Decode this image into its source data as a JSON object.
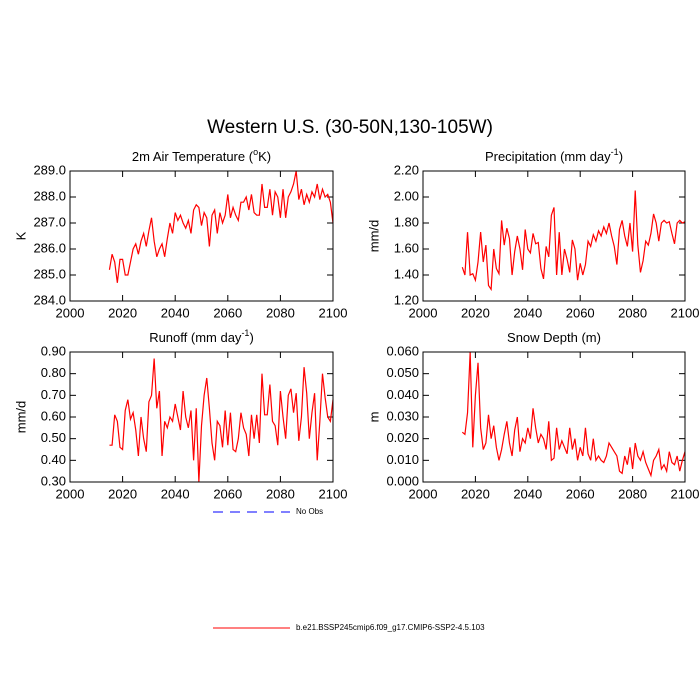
{
  "title": "Western U.S. (30-50N,130-105W)",
  "legend": [
    {
      "name": "No Obs",
      "color": "#0000ff",
      "dashed": true
    },
    {
      "name": "b.e21.BSSP245cmip6.f09_g17.CMIP6-SSP2-4.5.103",
      "color": "#ff0000",
      "dashed": false
    }
  ],
  "chart_data": [
    {
      "type": "line",
      "title": {
        "text": "2m Air Temperature (",
        "sup": "o",
        "end": "K)"
      },
      "y_label": "K",
      "xlim": [
        2000,
        2100
      ],
      "xticks": [
        2000,
        2020,
        2040,
        2060,
        2080,
        2100
      ],
      "ylim": [
        284,
        289
      ],
      "yticks": [
        {
          "value": 284,
          "label": "284.0"
        },
        {
          "value": 285,
          "label": "285.0"
        },
        {
          "value": 286,
          "label": "286.0"
        },
        {
          "value": 287,
          "label": "287.0"
        },
        {
          "value": 288,
          "label": "288.0"
        },
        {
          "value": 289,
          "label": "289.0"
        }
      ],
      "x": [
        2015,
        2016,
        2017,
        2018,
        2019,
        2020,
        2021,
        2022,
        2023,
        2024,
        2025,
        2026,
        2027,
        2028,
        2029,
        2030,
        2031,
        2032,
        2033,
        2034,
        2035,
        2036,
        2037,
        2038,
        2039,
        2040,
        2041,
        2042,
        2043,
        2044,
        2045,
        2046,
        2047,
        2048,
        2049,
        2050,
        2051,
        2052,
        2053,
        2054,
        2055,
        2056,
        2057,
        2058,
        2059,
        2060,
        2061,
        2062,
        2063,
        2064,
        2065,
        2066,
        2067,
        2068,
        2069,
        2070,
        2071,
        2072,
        2073,
        2074,
        2075,
        2076,
        2077,
        2078,
        2079,
        2080,
        2081,
        2082,
        2083,
        2084,
        2085,
        2086,
        2087,
        2088,
        2089,
        2090,
        2091,
        2092,
        2093,
        2094,
        2095,
        2096,
        2097,
        2098,
        2099,
        2100
      ],
      "series": [
        {
          "color": "#ff0000",
          "values": [
            285.2,
            285.8,
            285.5,
            284.7,
            285.6,
            285.6,
            285.0,
            285.0,
            285.5,
            286.0,
            286.2,
            285.8,
            286.3,
            286.6,
            286.1,
            286.7,
            287.2,
            286.3,
            285.7,
            286.0,
            286.2,
            285.7,
            286.4,
            287.0,
            286.6,
            287.4,
            287.1,
            287.3,
            287.0,
            286.8,
            287.1,
            286.6,
            287.5,
            287.7,
            287.6,
            286.9,
            287.4,
            287.2,
            286.1,
            287.3,
            287.5,
            286.6,
            287.4,
            287.0,
            287.3,
            288.1,
            287.2,
            287.6,
            287.3,
            287.1,
            287.8,
            287.8,
            288.0,
            287.5,
            288.1,
            287.4,
            287.3,
            287.3,
            288.5,
            287.6,
            287.6,
            288.3,
            287.3,
            288.2,
            288.0,
            287.2,
            288.3,
            287.2,
            288.0,
            288.2,
            288.5,
            289.0,
            287.9,
            288.3,
            287.7,
            288.1,
            287.8,
            288.2,
            288.0,
            288.5,
            287.9,
            288.3,
            288.0,
            288.1,
            287.8,
            287.0
          ]
        }
      ]
    },
    {
      "type": "line",
      "title": {
        "text": "Precipitation (mm day",
        "sup": "-1",
        "end": ")"
      },
      "y_label": "mm/d",
      "xlim": [
        2000,
        2100
      ],
      "xticks": [
        2000,
        2020,
        2040,
        2060,
        2080,
        2100
      ],
      "ylim": [
        1.2,
        2.2
      ],
      "yticks": [
        {
          "value": 1.2,
          "label": "1.20"
        },
        {
          "value": 1.4,
          "label": "1.40"
        },
        {
          "value": 1.6,
          "label": "1.60"
        },
        {
          "value": 1.8,
          "label": "1.80"
        },
        {
          "value": 2.0,
          "label": "2.00"
        },
        {
          "value": 2.2,
          "label": "2.20"
        }
      ],
      "x": [
        2015,
        2016,
        2017,
        2018,
        2019,
        2020,
        2021,
        2022,
        2023,
        2024,
        2025,
        2026,
        2027,
        2028,
        2029,
        2030,
        2031,
        2032,
        2033,
        2034,
        2035,
        2036,
        2037,
        2038,
        2039,
        2040,
        2041,
        2042,
        2043,
        2044,
        2045,
        2046,
        2047,
        2048,
        2049,
        2050,
        2051,
        2052,
        2053,
        2054,
        2055,
        2056,
        2057,
        2058,
        2059,
        2060,
        2061,
        2062,
        2063,
        2064,
        2065,
        2066,
        2067,
        2068,
        2069,
        2070,
        2071,
        2072,
        2073,
        2074,
        2075,
        2076,
        2077,
        2078,
        2079,
        2080,
        2081,
        2082,
        2083,
        2084,
        2085,
        2086,
        2087,
        2088,
        2089,
        2090,
        2091,
        2092,
        2093,
        2094,
        2095,
        2096,
        2097,
        2098,
        2099,
        2100
      ],
      "series": [
        {
          "color": "#ff0000",
          "values": [
            1.46,
            1.4,
            1.73,
            1.4,
            1.41,
            1.36,
            1.5,
            1.73,
            1.5,
            1.63,
            1.32,
            1.29,
            1.6,
            1.45,
            1.41,
            1.82,
            1.63,
            1.76,
            1.68,
            1.4,
            1.58,
            1.7,
            1.6,
            1.44,
            1.75,
            1.6,
            1.57,
            1.72,
            1.64,
            1.65,
            1.45,
            1.37,
            1.62,
            1.54,
            1.86,
            1.92,
            1.4,
            1.73,
            1.4,
            1.6,
            1.52,
            1.42,
            1.67,
            1.6,
            1.36,
            1.49,
            1.4,
            1.48,
            1.66,
            1.62,
            1.71,
            1.66,
            1.74,
            1.7,
            1.77,
            1.72,
            1.8,
            1.7,
            1.62,
            1.48,
            1.75,
            1.82,
            1.7,
            1.62,
            1.8,
            1.58,
            2.05,
            1.63,
            1.42,
            1.51,
            1.66,
            1.63,
            1.72,
            1.87,
            1.8,
            1.66,
            1.8,
            1.82,
            1.8,
            1.81,
            1.72,
            1.64,
            1.8,
            1.82,
            1.8,
            1.81
          ]
        }
      ]
    },
    {
      "type": "line",
      "title": {
        "text": "Runoff (mm day",
        "sup": "-1",
        "end": ")"
      },
      "y_label": "mm/d",
      "xlim": [
        2000,
        2100
      ],
      "xticks": [
        2000,
        2020,
        2040,
        2060,
        2080,
        2100
      ],
      "ylim": [
        0.3,
        0.9
      ],
      "yticks": [
        {
          "value": 0.3,
          "label": "0.30"
        },
        {
          "value": 0.4,
          "label": "0.40"
        },
        {
          "value": 0.5,
          "label": "0.50"
        },
        {
          "value": 0.6,
          "label": "0.60"
        },
        {
          "value": 0.7,
          "label": "0.70"
        },
        {
          "value": 0.8,
          "label": "0.80"
        },
        {
          "value": 0.9,
          "label": "0.90"
        }
      ],
      "x": [
        2015,
        2016,
        2017,
        2018,
        2019,
        2020,
        2021,
        2022,
        2023,
        2024,
        2025,
        2026,
        2027,
        2028,
        2029,
        2030,
        2031,
        2032,
        2033,
        2034,
        2035,
        2036,
        2037,
        2038,
        2039,
        2040,
        2041,
        2042,
        2043,
        2044,
        2045,
        2046,
        2047,
        2048,
        2049,
        2050,
        2051,
        2052,
        2053,
        2054,
        2055,
        2056,
        2057,
        2058,
        2059,
        2060,
        2061,
        2062,
        2063,
        2064,
        2065,
        2066,
        2067,
        2068,
        2069,
        2070,
        2071,
        2072,
        2073,
        2074,
        2075,
        2076,
        2077,
        2078,
        2079,
        2080,
        2081,
        2082,
        2083,
        2084,
        2085,
        2086,
        2087,
        2088,
        2089,
        2090,
        2091,
        2092,
        2093,
        2094,
        2095,
        2096,
        2097,
        2098,
        2099,
        2100
      ],
      "series": [
        {
          "color": "#ff0000",
          "values": [
            0.47,
            0.47,
            0.61,
            0.58,
            0.46,
            0.45,
            0.63,
            0.68,
            0.59,
            0.62,
            0.54,
            0.42,
            0.6,
            0.5,
            0.44,
            0.67,
            0.7,
            0.87,
            0.64,
            0.72,
            0.42,
            0.58,
            0.55,
            0.6,
            0.58,
            0.66,
            0.6,
            0.54,
            0.72,
            0.6,
            0.55,
            0.63,
            0.4,
            0.64,
            0.3,
            0.56,
            0.7,
            0.78,
            0.64,
            0.48,
            0.4,
            0.58,
            0.56,
            0.46,
            0.63,
            0.47,
            0.62,
            0.45,
            0.44,
            0.5,
            0.62,
            0.55,
            0.52,
            0.42,
            0.61,
            0.5,
            0.61,
            0.48,
            0.8,
            0.61,
            0.61,
            0.75,
            0.58,
            0.56,
            0.47,
            0.72,
            0.6,
            0.5,
            0.7,
            0.73,
            0.62,
            0.71,
            0.49,
            0.6,
            0.83,
            0.71,
            0.5,
            0.62,
            0.71,
            0.4,
            0.58,
            0.8,
            0.69,
            0.6,
            0.58,
            0.68
          ]
        }
      ]
    },
    {
      "type": "line",
      "title": {
        "text": "Snow Depth (m)"
      },
      "y_label": "m",
      "xlim": [
        2000,
        2100
      ],
      "xticks": [
        2000,
        2020,
        2040,
        2060,
        2080,
        2100
      ],
      "ylim": [
        0,
        0.06
      ],
      "yticks": [
        {
          "value": 0,
          "label": "0.000"
        },
        {
          "value": 0.01,
          "label": "0.010"
        },
        {
          "value": 0.02,
          "label": "0.020"
        },
        {
          "value": 0.03,
          "label": "0.030"
        },
        {
          "value": 0.04,
          "label": "0.040"
        },
        {
          "value": 0.05,
          "label": "0.050"
        },
        {
          "value": 0.06,
          "label": "0.060"
        }
      ],
      "x": [
        2015,
        2016,
        2017,
        2018,
        2019,
        2020,
        2021,
        2022,
        2023,
        2024,
        2025,
        2026,
        2027,
        2028,
        2029,
        2030,
        2031,
        2032,
        2033,
        2034,
        2035,
        2036,
        2037,
        2038,
        2039,
        2040,
        2041,
        2042,
        2043,
        2044,
        2045,
        2046,
        2047,
        2048,
        2049,
        2050,
        2051,
        2052,
        2053,
        2054,
        2055,
        2056,
        2057,
        2058,
        2059,
        2060,
        2061,
        2062,
        2063,
        2064,
        2065,
        2066,
        2067,
        2068,
        2069,
        2070,
        2071,
        2072,
        2073,
        2074,
        2075,
        2076,
        2077,
        2078,
        2079,
        2080,
        2081,
        2082,
        2083,
        2084,
        2085,
        2086,
        2087,
        2088,
        2089,
        2090,
        2091,
        2092,
        2093,
        2094,
        2095,
        2096,
        2097,
        2098,
        2099,
        2100
      ],
      "series": [
        {
          "color": "#ff0000",
          "values": [
            0.023,
            0.022,
            0.032,
            0.06,
            0.016,
            0.04,
            0.055,
            0.025,
            0.015,
            0.018,
            0.031,
            0.02,
            0.026,
            0.016,
            0.01,
            0.015,
            0.022,
            0.028,
            0.018,
            0.012,
            0.024,
            0.03,
            0.014,
            0.02,
            0.018,
            0.025,
            0.02,
            0.034,
            0.025,
            0.018,
            0.022,
            0.02,
            0.015,
            0.028,
            0.01,
            0.011,
            0.025,
            0.015,
            0.019,
            0.016,
            0.013,
            0.025,
            0.015,
            0.02,
            0.01,
            0.016,
            0.012,
            0.025,
            0.013,
            0.01,
            0.02,
            0.01,
            0.012,
            0.01,
            0.009,
            0.012,
            0.018,
            0.016,
            0.014,
            0.012,
            0.005,
            0.004,
            0.012,
            0.008,
            0.016,
            0.006,
            0.018,
            0.012,
            0.01,
            0.014,
            0.009,
            0.006,
            0.003,
            0.01,
            0.012,
            0.015,
            0.006,
            0.008,
            0.005,
            0.014,
            0.009,
            0.008,
            0.012,
            0.005,
            0.01,
            0.014
          ]
        }
      ]
    }
  ]
}
